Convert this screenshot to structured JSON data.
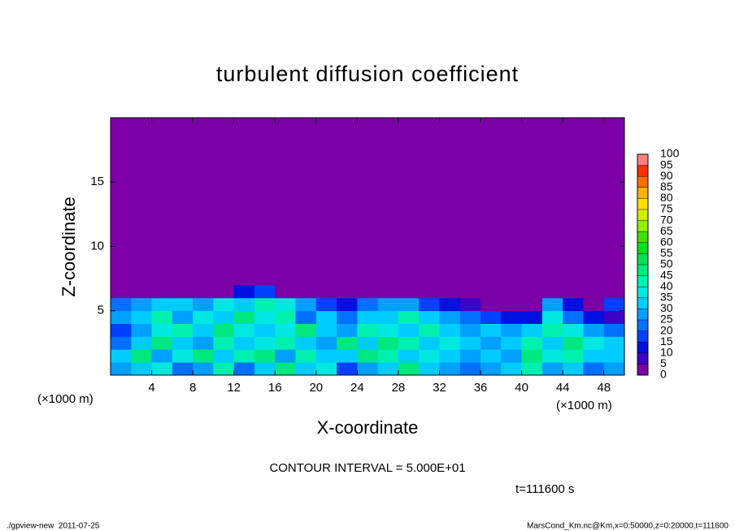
{
  "chart_data": {
    "type": "heatmap",
    "title": "turbulent diffusion coefficient",
    "x_label": "X-coordinate",
    "y_label": "Z-coordinate",
    "x_unit": "(×1000 m)",
    "y_unit": "(×1000 m)",
    "contour_note": "CONTOUR INTERVAL = 5.000E+01",
    "time_note": "t=111600 s",
    "footer_left": "./gpview-new  2011-07-25",
    "footer_right": "MarsCond_Km.nc@Km,x=0:50000,z=0:20000,t=111600",
    "xlim": [
      0,
      50
    ],
    "ylim": [
      0,
      20
    ],
    "xticks": [
      4,
      8,
      12,
      16,
      20,
      24,
      28,
      32,
      36,
      40,
      44,
      48
    ],
    "yticks": [
      5,
      10,
      15
    ],
    "xbins": [
      0,
      2,
      4,
      6,
      8,
      10,
      12,
      14,
      16,
      18,
      20,
      22,
      24,
      26,
      28,
      30,
      32,
      34,
      36,
      38,
      40,
      42,
      44,
      46,
      48,
      50
    ],
    "ybins": [
      0,
      1,
      2,
      3,
      4,
      5,
      6,
      7,
      20
    ],
    "values": [
      [
        25,
        30,
        35,
        20,
        25,
        40,
        20,
        30,
        45,
        30,
        35,
        15,
        25,
        30,
        45,
        30,
        25,
        20,
        25,
        30,
        40,
        25,
        30,
        20,
        25
      ],
      [
        30,
        45,
        25,
        35,
        45,
        30,
        40,
        45,
        25,
        40,
        30,
        30,
        45,
        40,
        30,
        35,
        30,
        25,
        30,
        25,
        45,
        35,
        40,
        30,
        30
      ],
      [
        20,
        30,
        45,
        30,
        25,
        40,
        30,
        35,
        40,
        30,
        25,
        45,
        30,
        45,
        40,
        30,
        35,
        30,
        25,
        30,
        40,
        30,
        45,
        35,
        30
      ],
      [
        15,
        25,
        35,
        40,
        30,
        45,
        35,
        30,
        35,
        45,
        30,
        25,
        40,
        35,
        30,
        40,
        30,
        25,
        30,
        25,
        30,
        40,
        35,
        25,
        20
      ],
      [
        25,
        30,
        40,
        25,
        35,
        30,
        45,
        35,
        40,
        20,
        30,
        20,
        30,
        30,
        40,
        30,
        25,
        20,
        15,
        10,
        10,
        35,
        20,
        10,
        5
      ],
      [
        20,
        25,
        30,
        30,
        25,
        35,
        30,
        40,
        35,
        25,
        15,
        10,
        20,
        25,
        25,
        15,
        10,
        5,
        0,
        0,
        0,
        25,
        10,
        0,
        15
      ],
      [
        0,
        0,
        0,
        0,
        0,
        0,
        10,
        15,
        0,
        0,
        0,
        0,
        0,
        0,
        0,
        0,
        0,
        0,
        0,
        0,
        0,
        0,
        0,
        0,
        0
      ],
      [
        0,
        0,
        0,
        0,
        0,
        0,
        0,
        0,
        0,
        0,
        0,
        0,
        0,
        0,
        0,
        0,
        0,
        0,
        0,
        0,
        0,
        0,
        0,
        0,
        0
      ]
    ],
    "levels": [
      0,
      5,
      10,
      15,
      20,
      25,
      30,
      35,
      40,
      45,
      50,
      55,
      60,
      65,
      70,
      75,
      80,
      85,
      90,
      95,
      100
    ],
    "colors": [
      "#7b00a6",
      "#3c00c8",
      "#0010e0",
      "#0040ff",
      "#0070ff",
      "#00a0ff",
      "#00ccff",
      "#00e8e0",
      "#00f0b0",
      "#00e880",
      "#00e050",
      "#00e020",
      "#40e000",
      "#90f000",
      "#d0f000",
      "#ffe000",
      "#ffb000",
      "#ff7000",
      "#ff3000",
      "#ff8080"
    ]
  }
}
